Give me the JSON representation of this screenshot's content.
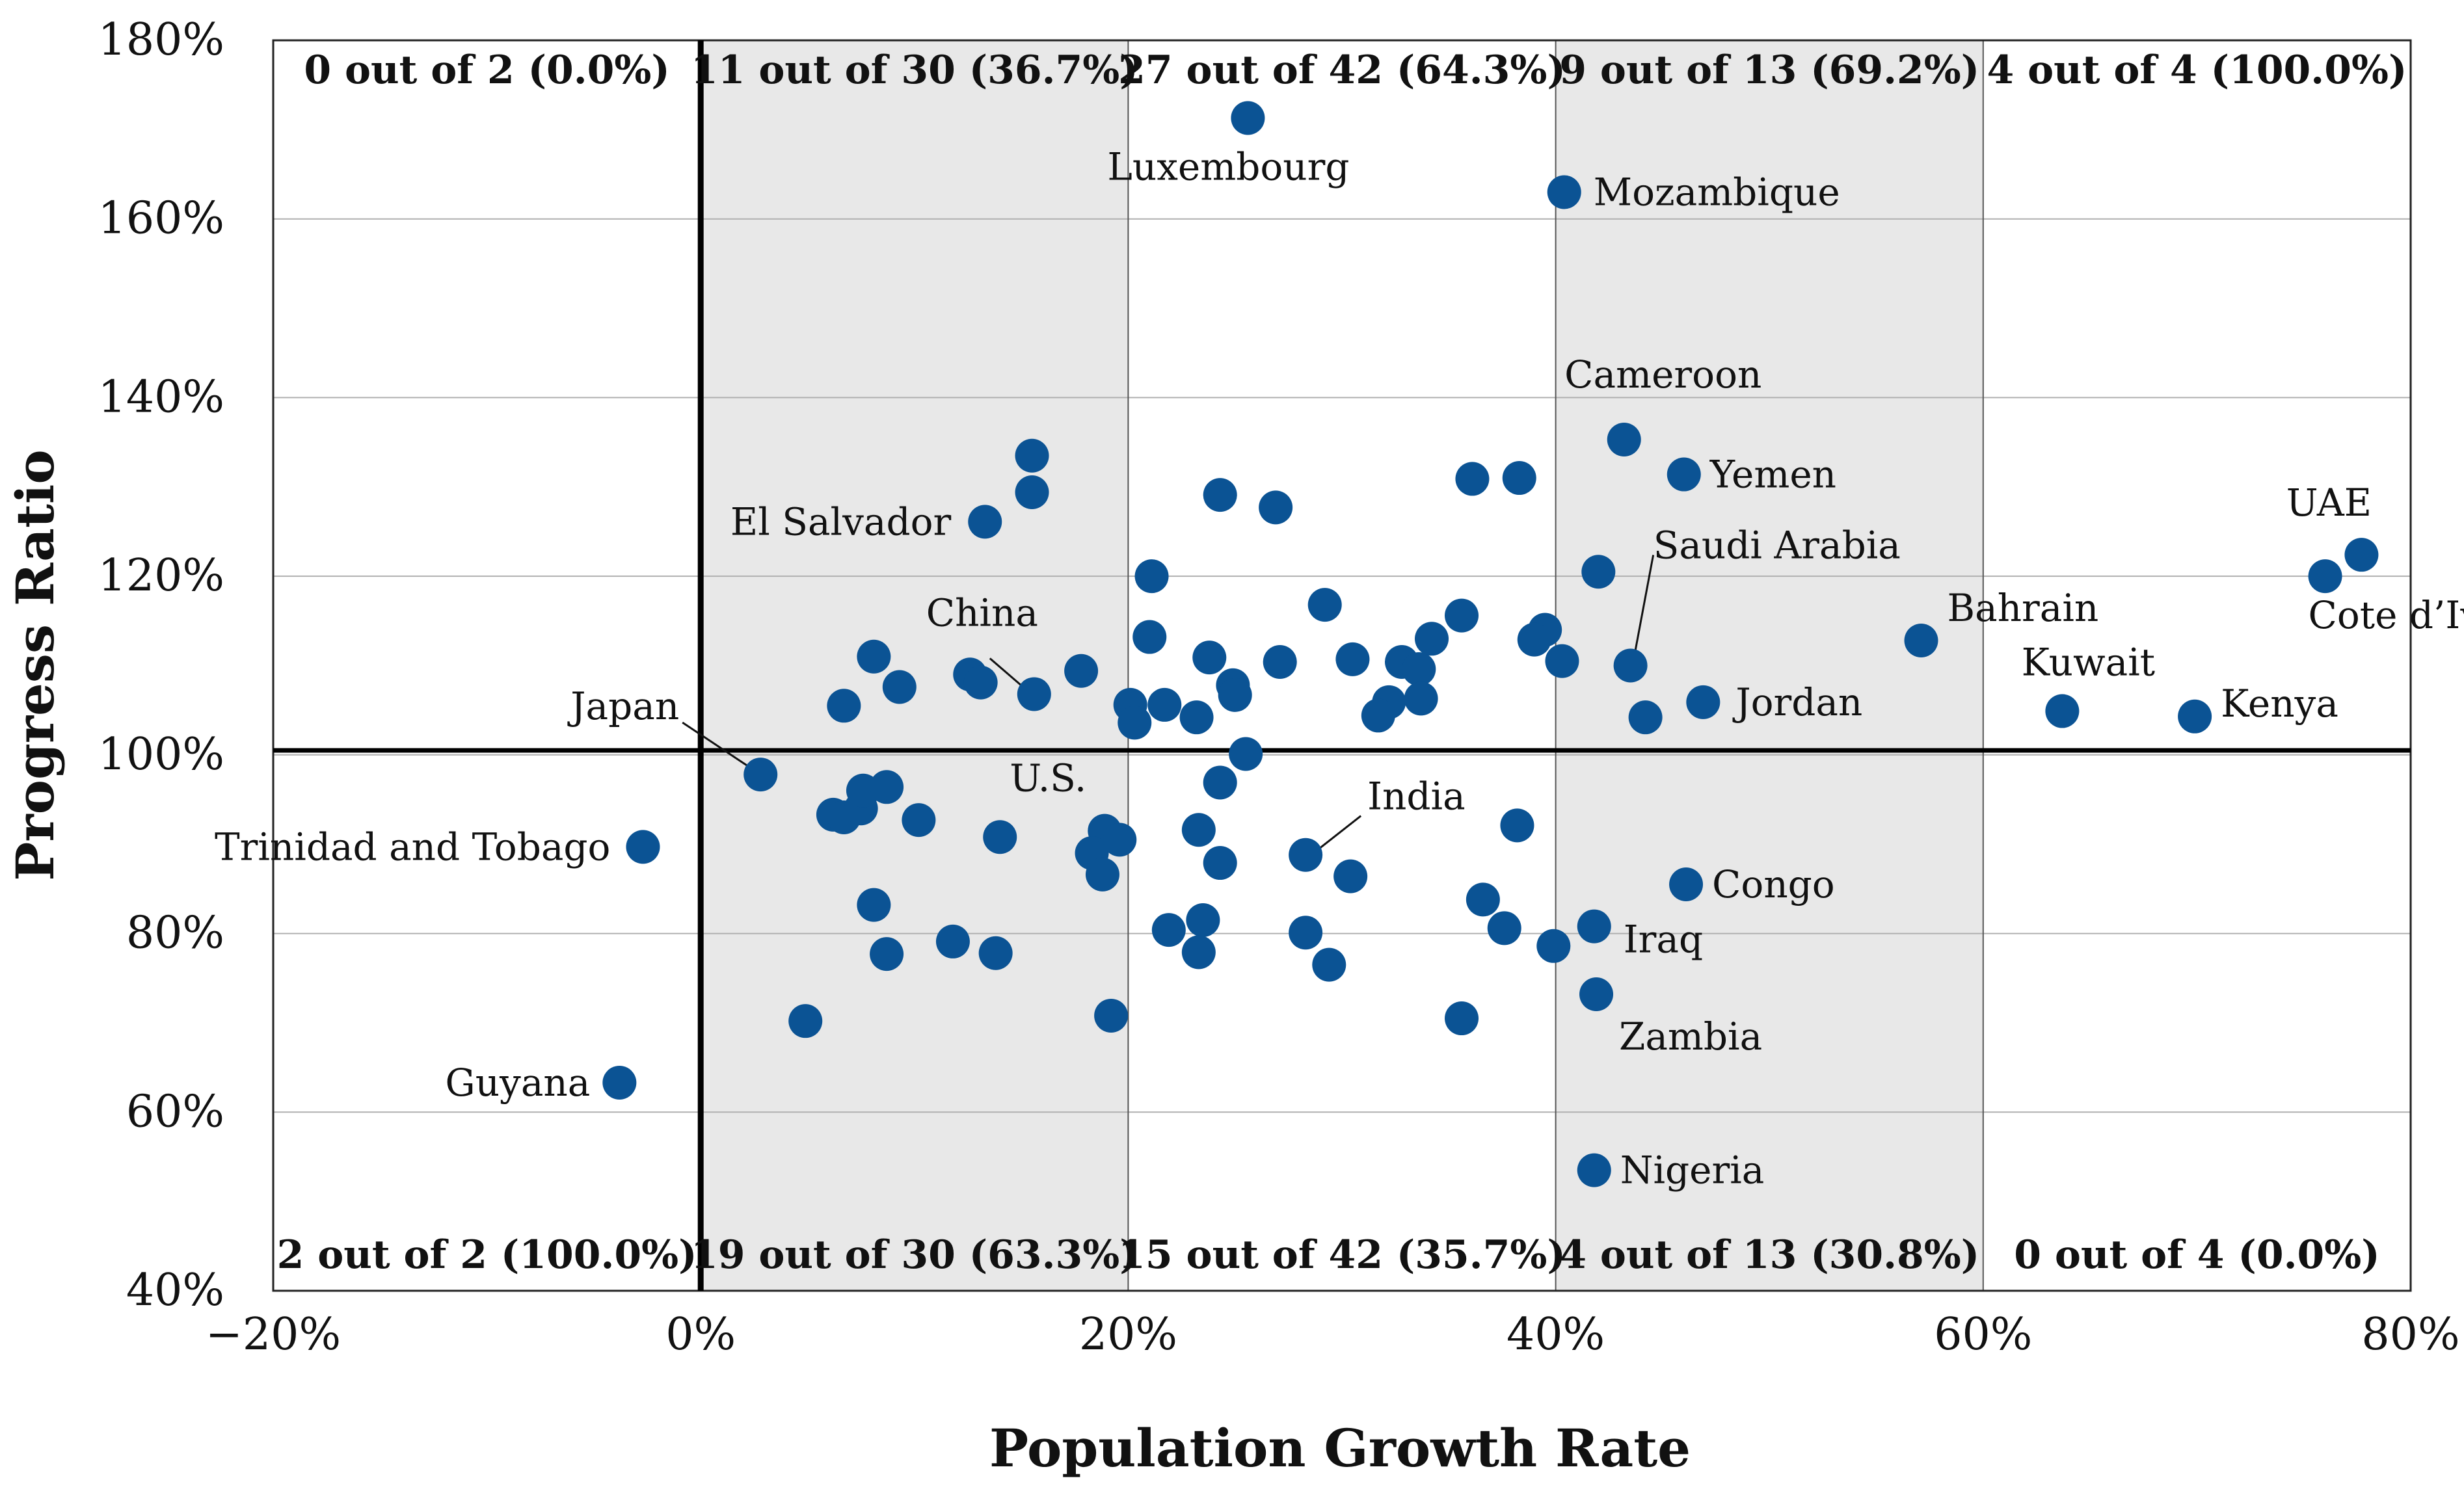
{
  "chart_data": {
    "type": "scatter",
    "title": "",
    "xlabel": "Population Growth Rate",
    "ylabel": "Progress Ratio",
    "xlim": [
      -20,
      80
    ],
    "ylim": [
      40,
      180
    ],
    "x_ticks": [
      -20,
      0,
      20,
      40,
      60,
      80
    ],
    "x_tick_labels": [
      "−20%",
      "0%",
      "20%",
      "40%",
      "60%",
      "80%"
    ],
    "y_ticks": [
      40,
      60,
      80,
      100,
      120,
      140,
      160,
      180
    ],
    "y_tick_labels": [
      "40%",
      "60%",
      "80%",
      "100%",
      "120%",
      "140%",
      "160%",
      "180%"
    ],
    "reference_lines": {
      "x": 0,
      "y": 100.5
    },
    "shaded_x_bands": [
      [
        0,
        20
      ],
      [
        40,
        60
      ]
    ],
    "band_counts_top": [
      {
        "band": [
          -20,
          0
        ],
        "text": "0 out of 2 (0.0%)"
      },
      {
        "band": [
          0,
          20
        ],
        "text": "11 out of 30 (36.7%)"
      },
      {
        "band": [
          20,
          40
        ],
        "text": "27 out of 42 (64.3%)"
      },
      {
        "band": [
          40,
          60
        ],
        "text": "9 out of 13 (69.2%)"
      },
      {
        "band": [
          60,
          80
        ],
        "text": "4 out of 4 (100.0%)"
      }
    ],
    "band_counts_bottom": [
      {
        "band": [
          -20,
          0
        ],
        "text": "2 out of 2 (100.0%)"
      },
      {
        "band": [
          0,
          20
        ],
        "text": "19 out of 30 (63.3%)"
      },
      {
        "band": [
          20,
          40
        ],
        "text": "15 out of 42 (35.7%)"
      },
      {
        "band": [
          40,
          60
        ],
        "text": "4 out of 13 (30.8%)"
      },
      {
        "band": [
          60,
          80
        ],
        "text": "0 out of 4 (0.0%)"
      }
    ],
    "labeled_points": [
      {
        "name": "Luxembourg",
        "x": 25.6,
        "y": 171.3
      },
      {
        "name": "Mozambique",
        "x": 40.4,
        "y": 163.0
      },
      {
        "name": "Cameroon",
        "x": 43.2,
        "y": 135.3
      },
      {
        "name": "Yemen",
        "x": 46.0,
        "y": 131.4
      },
      {
        "name": "El Salvador",
        "x": 13.3,
        "y": 126.1
      },
      {
        "name": "UAE",
        "x": 77.7,
        "y": 122.4
      },
      {
        "name": "Cote d'Ivoire",
        "x": 76.0,
        "y": 120.0
      },
      {
        "name": "China",
        "x": 15.6,
        "y": 106.8
      },
      {
        "name": "Saudi Arabia",
        "x": 43.5,
        "y": 110.0
      },
      {
        "name": "Bahrain",
        "x": 57.1,
        "y": 112.8
      },
      {
        "name": "Kuwait",
        "x": 63.7,
        "y": 104.9
      },
      {
        "name": "Kenya",
        "x": 69.9,
        "y": 104.3
      },
      {
        "name": "Jordan",
        "x": 46.9,
        "y": 105.9
      },
      {
        "name": "Japan",
        "x": 2.8,
        "y": 97.8
      },
      {
        "name": "U.S.",
        "x": 19.6,
        "y": 90.5
      },
      {
        "name": "India",
        "x": 28.3,
        "y": 88.8
      },
      {
        "name": "Trinidad and Tobago",
        "x": -2.7,
        "y": 89.7
      },
      {
        "name": "Congo",
        "x": 46.1,
        "y": 85.5
      },
      {
        "name": "Iraq",
        "x": 41.8,
        "y": 80.8
      },
      {
        "name": "Zambia",
        "x": 41.9,
        "y": 73.2
      },
      {
        "name": "Guyana",
        "x": -3.8,
        "y": 63.3
      },
      {
        "name": "Nigeria",
        "x": 41.8,
        "y": 53.5
      }
    ],
    "label_texts": {
      "Luxembourg": "Luxembourg",
      "Mozambique": "Mozambique",
      "Cameroon": "Cameroon",
      "Yemen": "Yemen",
      "El Salvador": "El Salvador",
      "UAE": "UAE",
      "Cote d'Ivoire": "Cote d’Ivoire",
      "China": "China",
      "Saudi Arabia": "Saudi Arabia",
      "Bahrain": "Bahrain",
      "Kuwait": "Kuwait",
      "Kenya": "Kenya",
      "Jordan": "Jordan",
      "Japan": "Japan",
      "U.S.": "U.S.",
      "India": "India",
      "Trinidad and Tobago": "Trinidad and Tobago",
      "Congo": "Congo",
      "Iraq": "Iraq",
      "Zambia": "Zambia",
      "Guyana": "Guyana",
      "Nigeria": "Nigeria"
    },
    "other_points": [
      [
        15.5,
        133.5
      ],
      [
        15.5,
        129.4
      ],
      [
        24.3,
        129.1
      ],
      [
        26.9,
        127.7
      ],
      [
        36.1,
        130.9
      ],
      [
        38.3,
        131.0
      ],
      [
        21.1,
        120.0
      ],
      [
        42.0,
        120.5
      ],
      [
        29.2,
        116.8
      ],
      [
        35.6,
        115.6
      ],
      [
        39.5,
        114.0
      ],
      [
        39.0,
        112.9
      ],
      [
        34.2,
        113.0
      ],
      [
        21.0,
        113.2
      ],
      [
        8.1,
        111.0
      ],
      [
        12.6,
        109.0
      ],
      [
        13.1,
        108.1
      ],
      [
        9.3,
        107.6
      ],
      [
        6.7,
        105.5
      ],
      [
        17.8,
        109.4
      ],
      [
        23.8,
        110.9
      ],
      [
        27.1,
        110.4
      ],
      [
        30.5,
        110.7
      ],
      [
        32.8,
        110.4
      ],
      [
        33.6,
        109.6
      ],
      [
        40.3,
        110.5
      ],
      [
        20.1,
        105.6
      ],
      [
        20.3,
        103.6
      ],
      [
        21.7,
        105.6
      ],
      [
        23.2,
        104.2
      ],
      [
        24.9,
        107.8
      ],
      [
        25.0,
        106.7
      ],
      [
        32.2,
        105.9
      ],
      [
        31.7,
        104.4
      ],
      [
        33.7,
        106.3
      ],
      [
        44.2,
        104.2
      ],
      [
        25.5,
        100.1
      ],
      [
        24.3,
        96.9
      ],
      [
        6.2,
        93.3
      ],
      [
        6.7,
        93.0
      ],
      [
        7.5,
        94.0
      ],
      [
        7.6,
        96.0
      ],
      [
        8.7,
        96.4
      ],
      [
        10.2,
        92.7
      ],
      [
        14.0,
        90.8
      ],
      [
        18.9,
        91.5
      ],
      [
        18.3,
        89.0
      ],
      [
        18.8,
        86.6
      ],
      [
        23.3,
        91.6
      ],
      [
        24.3,
        87.9
      ],
      [
        30.4,
        86.4
      ],
      [
        38.2,
        92.1
      ],
      [
        8.1,
        83.2
      ],
      [
        8.7,
        77.7
      ],
      [
        11.8,
        79.1
      ],
      [
        13.8,
        77.8
      ],
      [
        21.9,
        80.4
      ],
      [
        23.5,
        81.5
      ],
      [
        23.3,
        77.9
      ],
      [
        28.3,
        80.1
      ],
      [
        29.4,
        76.5
      ],
      [
        36.6,
        83.8
      ],
      [
        37.6,
        80.6
      ],
      [
        39.9,
        78.6
      ],
      [
        4.9,
        70.2
      ],
      [
        19.2,
        70.8
      ],
      [
        35.6,
        70.5
      ]
    ]
  }
}
